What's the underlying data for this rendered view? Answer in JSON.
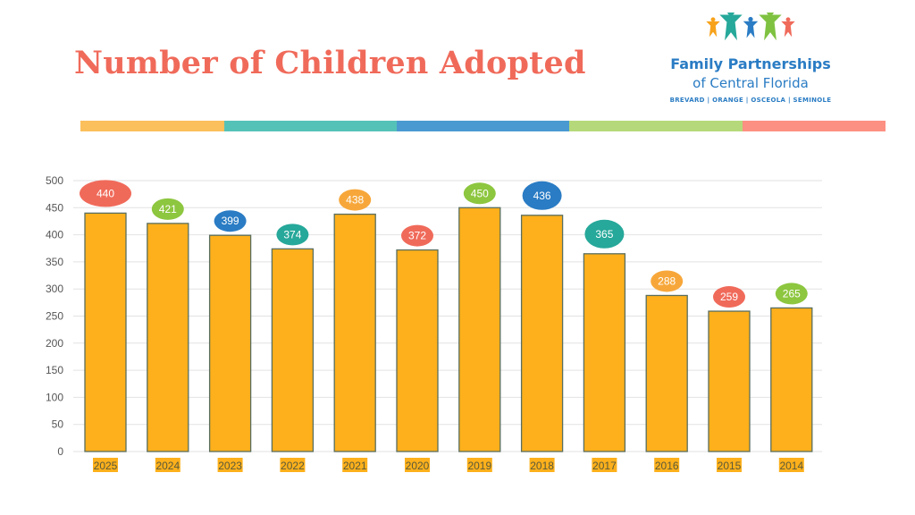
{
  "header": {
    "title": "Number of Children Adopted"
  },
  "logo": {
    "name_line1": "Family Partnerships",
    "name_line2": "of Central Florida",
    "counties": "BREVARD | ORANGE | OSCEOLA | SEMINOLE",
    "figure_colors": [
      "#f7a21b",
      "#26a89a",
      "#2a7cc4",
      "#7fc241",
      "#f06a5a"
    ]
  },
  "stripe_colors": [
    "#fbbf5c",
    "#55c2b8",
    "#4a9ad1",
    "#b5d97a",
    "#fc9082"
  ],
  "chart_data": {
    "type": "bar",
    "title": "Number of Children Adopted",
    "xlabel": "",
    "ylabel": "",
    "categories": [
      "2025",
      "2024",
      "2023",
      "2022",
      "2021",
      "2020",
      "2019",
      "2018",
      "2017",
      "2016",
      "2015",
      "2014"
    ],
    "values": [
      440,
      421,
      399,
      374,
      438,
      372,
      450,
      436,
      365,
      288,
      259,
      265
    ],
    "ylim": [
      0,
      500
    ],
    "yticks": [
      0,
      50,
      100,
      150,
      200,
      250,
      300,
      350,
      400,
      450,
      500
    ],
    "grid": true,
    "legend": "none",
    "bar_color": "#fdb01b",
    "bar_outline": "#5a6e5e",
    "label_bubble_colors": [
      "#f06a5a",
      "#8dc63f",
      "#2a7cc4",
      "#26a89a",
      "#f7a73a",
      "#f06a5a",
      "#8dc63f",
      "#2a7cc4",
      "#26a89a",
      "#f7a73a",
      "#f06a5a",
      "#8dc63f"
    ]
  }
}
